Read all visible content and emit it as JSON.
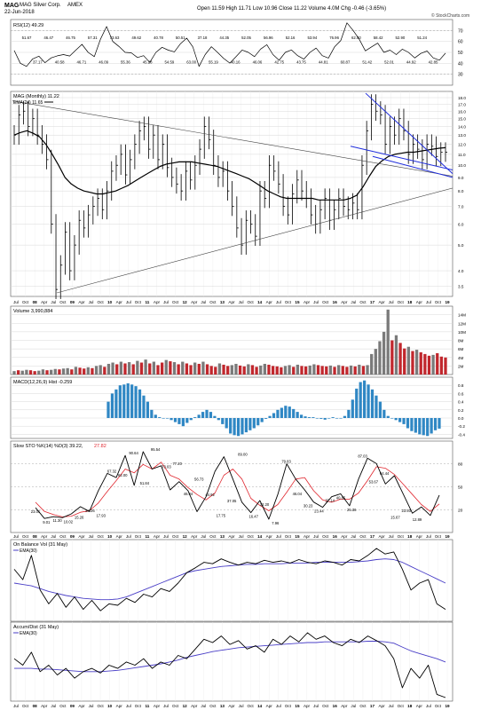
{
  "header": {
    "symbol": "MAG",
    "company": "MAG Silver Corp.",
    "exchange": "AMEX",
    "date": "22-Jun-2018",
    "quote": "Open 11.59  High 11.71  Low 10.96  Close 11.22  Volume 4.0M  Chg -0.46 (-3.65%)",
    "watermark": "© StockCharts.com"
  },
  "x_axis_labels": [
    "Jul",
    "Oct",
    "08",
    "Apr",
    "Jul",
    "Oct",
    "09",
    "Apr",
    "Jul",
    "Oct",
    "10",
    "Apr",
    "Jul",
    "Oct",
    "11",
    "Apr",
    "Jul",
    "Oct",
    "12",
    "Apr",
    "Jul",
    "Oct",
    "13",
    "Apr",
    "Jul",
    "Oct",
    "14",
    "Apr",
    "Jul",
    "Oct",
    "15",
    "Apr",
    "Jul",
    "Oct",
    "16",
    "Apr",
    "Jul",
    "Oct",
    "17",
    "Apr",
    "Jul",
    "Oct",
    "18",
    "Apr",
    "Jul",
    "Oct",
    "19"
  ],
  "colors": {
    "price": "#000000",
    "ema": "#000000",
    "trend_blue": "#1f2ddb",
    "volume_up": "#7a7a7a",
    "volume_down": "#c1272d",
    "macd_hist": "#2f87c4",
    "sto_k": "#000000",
    "sto_d": "#e0262e",
    "obv_ema": "#4a3fc7",
    "grid": "#d8d8d8"
  },
  "chart_data": [
    {
      "type": "line",
      "title": "RSI(12) 49.29",
      "panel": "rsi",
      "ylim": [
        20,
        80
      ],
      "ticks": [
        "70",
        "60",
        "50",
        "40",
        "30"
      ],
      "annotations": [
        "51.67",
        "37.17",
        "46.47",
        "40.58",
        "46.75",
        "46.71",
        "57.31",
        "46.09",
        "73.63",
        "55.36",
        "49.62",
        "45.28",
        "40.78",
        "54.59",
        "50.51",
        "63.00",
        "37.18",
        "55.19",
        "44.35",
        "40.16",
        "52.05",
        "46.06",
        "56.96",
        "42.75",
        "52.16",
        "43.75",
        "53.94",
        "44.81",
        "76.96",
        "60.87",
        "62.00",
        "51.42",
        "58.42",
        "52.01",
        "52.90",
        "44.92",
        "51.24",
        "42.85"
      ],
      "values": [
        51.7,
        40,
        37.2,
        44,
        46.5,
        40.6,
        45,
        46.8,
        48,
        46.7,
        52,
        57.3,
        50,
        46.1,
        62,
        73.6,
        60,
        55.4,
        50,
        49.6,
        45.3,
        47,
        40.8,
        50,
        54.6,
        52,
        50.5,
        58,
        63,
        55,
        37.2,
        48,
        55.2,
        50,
        44.4,
        40.2,
        46,
        52.1,
        50,
        46.1,
        53,
        57,
        48,
        42.8,
        50,
        52.2,
        47,
        43.8,
        50,
        53.9,
        47,
        44.8,
        55,
        60.9,
        77,
        70,
        62,
        51.4,
        55,
        58.4,
        50,
        52,
        48,
        52.9,
        50,
        44.9,
        49,
        51.2,
        45,
        42.9,
        49.3
      ]
    },
    {
      "type": "line",
      "title": "MAG (Monthly) 11.22",
      "subtitle": "EMA(24) 11.65",
      "panel": "price",
      "scale": "log",
      "ylim": [
        3.2,
        19
      ],
      "ticks": [
        "18.0",
        "17.0",
        "16.0",
        "15.0",
        "14.0",
        "13.0",
        "12.0",
        "11.0",
        "10.0",
        "9.0",
        "8.0",
        "7.0",
        "6.0",
        "5.0",
        "4.0",
        "3.5"
      ],
      "values": [
        13,
        15.5,
        16,
        14,
        15,
        13,
        12,
        10.5,
        6,
        3.4,
        4.2,
        5.6,
        4,
        5,
        6.2,
        5.8,
        6.5,
        7,
        7.5,
        6.8,
        8,
        9.5,
        10,
        11,
        9.2,
        10.5,
        12,
        13.5,
        14,
        11.5,
        13,
        10.5,
        12,
        9.8,
        9,
        8.5,
        8,
        9.5,
        8.8,
        10,
        11.5,
        14,
        12.5,
        10,
        9,
        9.5,
        8,
        7,
        5.8,
        5,
        6.2,
        6,
        5.4,
        8,
        7.5,
        10,
        9.5,
        8.5,
        7,
        6.5,
        7.8,
        8.8,
        8,
        7.5,
        6.5,
        6,
        6.8,
        7.5,
        6.2,
        6.8,
        7.5,
        7,
        6.8,
        7.2,
        6.8,
        10,
        13.5,
        17,
        16,
        15.5,
        12,
        14,
        13,
        15,
        13.5,
        11,
        12,
        11.5,
        10.5,
        12,
        11.8,
        10.8,
        11.2,
        11.2
      ],
      "ema": [
        13,
        13.3,
        13.5,
        13.2,
        12.8,
        12,
        11,
        10,
        9,
        8.5,
        8.2,
        8,
        7.9,
        7.8,
        7.8,
        7.9,
        8,
        8.2,
        8.4,
        8.7,
        9,
        9.3,
        9.6,
        9.9,
        10.1,
        10.2,
        10.3,
        10.3,
        10.3,
        10.2,
        10.1,
        10,
        9.9,
        9.7,
        9.5,
        9.3,
        9.1,
        8.9,
        8.6,
        8.3,
        8,
        7.8,
        7.6,
        7.5,
        7.5,
        7.5,
        7.5,
        7.5,
        7.4,
        7.4,
        7.4,
        7.4,
        7.4,
        7.5,
        7.7,
        8.3,
        9.1,
        9.9,
        10.4,
        10.8,
        11,
        11.1,
        11.2,
        11.2,
        11.3,
        11.4,
        11.5,
        11.6,
        11.65
      ]
    },
    {
      "type": "bar",
      "title": "Volume 3,990,884",
      "panel": "volume",
      "ylim": [
        0,
        16
      ],
      "ticks": [
        "14M",
        "12M",
        "10M",
        "8M",
        "6M",
        "4M",
        "2M"
      ],
      "values": [
        0.8,
        1,
        0.9,
        1.1,
        1,
        0.8,
        0.9,
        1.2,
        1,
        1.1,
        1.3,
        1.2,
        1.4,
        1.5,
        1.2,
        1.8,
        1.6,
        1.4,
        1.7,
        1.5,
        2,
        2.2,
        1.8,
        2.5,
        2.8,
        2.4,
        3,
        2.6,
        2.9,
        2.4,
        3.2,
        2.8,
        3.5,
        2.6,
        3,
        2.2,
        2.8,
        3.4,
        3.1,
        2.9,
        2.4,
        3,
        2.6,
        2.2,
        2.8,
        2.5,
        3,
        2.4,
        2,
        1.8,
        2.6,
        2.3,
        2,
        2.2,
        2.5,
        2.1,
        1.9,
        2.4,
        2.2,
        1.8,
        2.1,
        2.5,
        2.3,
        2,
        1.9,
        1.7,
        2,
        2.2,
        1.8,
        2.3,
        2,
        1.9,
        2.1,
        2.4,
        2.2,
        2,
        1.9,
        2.1,
        1.8,
        2.2,
        2,
        1.8,
        2.1,
        1.9,
        2.3,
        2,
        2.2,
        4.8,
        6,
        7.8,
        10,
        15.2,
        8,
        9.2,
        7.4,
        6.1,
        6.5,
        5.5,
        5.8,
        5.2,
        4.8,
        4.4,
        4.6,
        5,
        4.2,
        3.99
      ],
      "up": [
        1,
        0,
        1,
        1,
        0,
        0,
        1,
        1,
        0,
        1,
        1,
        0,
        1,
        1,
        0,
        1,
        0,
        0,
        1,
        0,
        1,
        1,
        0,
        1,
        1,
        0,
        1,
        0,
        1,
        0,
        1,
        0,
        1,
        0,
        1,
        0,
        0,
        1,
        0,
        1,
        0,
        1,
        0,
        0,
        1,
        0,
        1,
        0,
        0,
        0,
        1,
        0,
        0,
        1,
        1,
        0,
        0,
        1,
        0,
        0,
        1,
        1,
        0,
        0,
        0,
        0,
        1,
        1,
        0,
        1,
        0,
        0,
        1,
        1,
        0,
        0,
        0,
        1,
        0,
        1,
        0,
        0,
        1,
        0,
        1,
        0,
        1,
        1,
        1,
        1,
        1,
        1,
        0,
        1,
        0,
        0,
        1,
        0,
        1,
        0,
        0,
        0,
        1,
        0,
        0,
        0,
        0
      ]
    },
    {
      "type": "bar",
      "title": "MACD(12,26,9) Hist -0.259",
      "panel": "macd",
      "ylim": [
        -0.5,
        1.0
      ],
      "ticks": [
        "0.8",
        "0.6",
        "0.4",
        "0.2",
        "0.0",
        "-0.2",
        "-0.4"
      ],
      "values": [
        0.4,
        0.6,
        0.7,
        0.8,
        0.82,
        0.85,
        0.82,
        0.78,
        0.7,
        0.55,
        0.4,
        0.2,
        0.08,
        0.02,
        0.0,
        0.0,
        -0.05,
        -0.1,
        -0.15,
        -0.2,
        -0.12,
        -0.05,
        0.02,
        0.08,
        0.15,
        0.2,
        0.15,
        0.05,
        -0.05,
        -0.15,
        -0.25,
        -0.38,
        -0.42,
        -0.44,
        -0.4,
        -0.35,
        -0.3,
        -0.25,
        -0.18,
        -0.1,
        -0.02,
        0.05,
        0.12,
        0.2,
        0.25,
        0.3,
        0.28,
        0.22,
        0.15,
        0.08,
        0.04,
        0.02,
        0.02,
        0.0,
        -0.02,
        -0.04,
        0.0,
        0.02,
        0.0,
        -0.01,
        0.05,
        0.2,
        0.45,
        0.72,
        0.88,
        0.92,
        0.82,
        0.7,
        0.55,
        0.4,
        0.2,
        0.05,
        0.0,
        -0.05,
        -0.1,
        -0.15,
        -0.25,
        -0.32,
        -0.36,
        -0.4,
        -0.42,
        -0.44,
        -0.38,
        -0.3,
        -0.26
      ]
    },
    {
      "type": "line",
      "title": "Slow STO %K(14) %D(3) 39.22, 27.82",
      "panel": "sto",
      "ylim": [
        0,
        100
      ],
      "ticks": [
        "80",
        "50",
        "20"
      ],
      "annotations": [
        "23.01",
        "9.01",
        "11.30",
        "10.02",
        "15.26",
        "24.26",
        "17.93",
        "67.32",
        "62.00",
        "90.64",
        "51.84",
        "95.54",
        "73.03",
        "77.20",
        "46.04",
        "56.73",
        "44.92",
        "17.75",
        "37.05",
        "89.00",
        "16.47",
        "32.20",
        "7.96",
        "79.83",
        "46.04",
        "30.23",
        "23.44",
        "37.14",
        "40.85",
        "25.36",
        "87.03",
        "53.67",
        "64.44",
        "15.67",
        "23.93",
        "12.89"
      ],
      "k": [
        23,
        9,
        11.3,
        10,
        15,
        24.3,
        18,
        45,
        67.3,
        62,
        90.6,
        51.8,
        95.5,
        73,
        77.2,
        46,
        56.7,
        44.9,
        17.8,
        37,
        70,
        89,
        60,
        30,
        16.5,
        32.2,
        8,
        40,
        79.8,
        60,
        46,
        30.2,
        23.4,
        37.1,
        40.9,
        25.4,
        60,
        87,
        80,
        53.7,
        64.4,
        40,
        15.7,
        23.9,
        12.9,
        39.2
      ],
      "d": [
        30,
        18,
        14,
        11,
        12,
        17,
        19,
        29,
        44,
        58,
        73,
        68,
        79,
        73,
        82,
        65,
        60,
        49,
        40,
        33,
        42,
        65,
        73,
        60,
        35,
        26,
        19,
        27,
        43,
        60,
        62,
        45,
        33,
        30,
        34,
        34,
        42,
        58,
        76,
        74,
        66,
        53,
        40,
        27,
        18,
        27.8
      ]
    },
    {
      "type": "line",
      "title": "On Balance Vol (31 May)",
      "legend": [
        "EMA(30)"
      ],
      "panel": "obv",
      "values": [
        0.7,
        0.55,
        0.9,
        0.4,
        0.2,
        0.35,
        0.15,
        0.3,
        0.12,
        0.25,
        0.1,
        0.2,
        0.18,
        0.28,
        0.22,
        0.34,
        0.3,
        0.42,
        0.38,
        0.5,
        0.65,
        0.72,
        0.8,
        0.78,
        0.85,
        0.8,
        0.76,
        0.8,
        0.78,
        0.83,
        0.8,
        0.82,
        0.79,
        0.84,
        0.8,
        0.78,
        0.82,
        0.8,
        0.76,
        0.84,
        0.82,
        0.9,
        1.0,
        0.92,
        0.95,
        0.7,
        0.4,
        0.5,
        0.55,
        0.2,
        0.12
      ],
      "ema": [
        0.5,
        0.48,
        0.46,
        0.42,
        0.38,
        0.35,
        0.32,
        0.3,
        0.28,
        0.27,
        0.26,
        0.26,
        0.27,
        0.3,
        0.35,
        0.4,
        0.45,
        0.5,
        0.55,
        0.6,
        0.65,
        0.68,
        0.7,
        0.72,
        0.74,
        0.75,
        0.76,
        0.77,
        0.77,
        0.78,
        0.78,
        0.78,
        0.79,
        0.79,
        0.79,
        0.8,
        0.8,
        0.8,
        0.8,
        0.8,
        0.81,
        0.82,
        0.84,
        0.85,
        0.84,
        0.8,
        0.74,
        0.68,
        0.62,
        0.56,
        0.5
      ]
    },
    {
      "type": "line",
      "title": "Accum/Dist (31 May)",
      "legend": [
        "EMA(30)"
      ],
      "panel": "ad",
      "values": [
        0.6,
        0.5,
        0.7,
        0.4,
        0.5,
        0.35,
        0.45,
        0.3,
        0.4,
        0.45,
        0.38,
        0.5,
        0.45,
        0.55,
        0.5,
        0.6,
        0.45,
        0.55,
        0.5,
        0.65,
        0.6,
        0.75,
        0.9,
        0.85,
        0.95,
        0.82,
        0.88,
        0.75,
        0.8,
        0.7,
        0.9,
        0.82,
        0.95,
        0.86,
        1.0,
        0.9,
        0.95,
        0.85,
        0.8,
        0.9,
        0.85,
        0.95,
        0.88,
        0.8,
        0.6,
        0.15,
        0.45,
        0.3,
        0.5,
        0.05,
        0.0
      ],
      "ema": [
        0.45,
        0.45,
        0.45,
        0.44,
        0.44,
        0.43,
        0.42,
        0.41,
        0.4,
        0.4,
        0.4,
        0.41,
        0.42,
        0.44,
        0.46,
        0.48,
        0.5,
        0.52,
        0.55,
        0.58,
        0.62,
        0.65,
        0.68,
        0.71,
        0.73,
        0.75,
        0.77,
        0.78,
        0.79,
        0.8,
        0.81,
        0.82,
        0.83,
        0.84,
        0.85,
        0.85,
        0.86,
        0.86,
        0.86,
        0.86,
        0.86,
        0.87,
        0.87,
        0.86,
        0.84,
        0.78,
        0.72,
        0.68,
        0.64,
        0.6,
        0.55
      ]
    }
  ]
}
